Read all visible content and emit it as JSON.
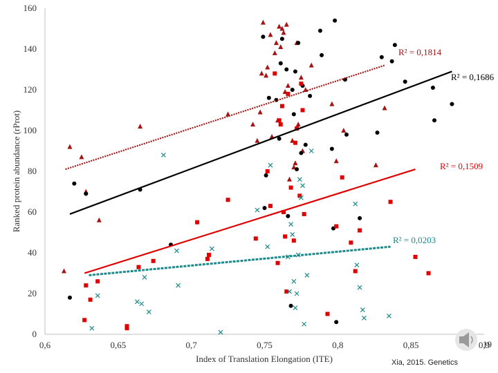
{
  "chart_data": {
    "type": "scatter",
    "xlabel": "Index of Translation Elongation (ITE)",
    "ylabel": "Ranked protein abundance (rProt)",
    "xlim": [
      0.6,
      0.9
    ],
    "ylim": [
      0,
      160
    ],
    "x_ticks": [
      "0,6",
      "0,65",
      "0,7",
      "0,75",
      "0,8",
      "0,85",
      "0,9"
    ],
    "y_ticks": [
      "0",
      "20",
      "40",
      "60",
      "80",
      "100",
      "120",
      "140",
      "160"
    ],
    "grid": false,
    "colors": {
      "triangles": "#a31515",
      "circles": "#000000",
      "squares": "#e00000",
      "crosses": "#1a8a8a"
    },
    "series": [
      {
        "marker": "triangle",
        "color": "#a31515",
        "trend": {
          "x": [
            0.614,
            0.832
          ],
          "y": [
            81,
            132
          ],
          "style": "dotted"
        },
        "r2_label": "R² = 0,1814",
        "points": [
          [
            0.613,
            31
          ],
          [
            0.617,
            92
          ],
          [
            0.625,
            87
          ],
          [
            0.628,
            70
          ],
          [
            0.637,
            56
          ],
          [
            0.665,
            102
          ],
          [
            0.725,
            108
          ],
          [
            0.742,
            103
          ],
          [
            0.745,
            95
          ],
          [
            0.747,
            109
          ],
          [
            0.748,
            128
          ],
          [
            0.749,
            153
          ],
          [
            0.751,
            127
          ],
          [
            0.752,
            131
          ],
          [
            0.754,
            147
          ],
          [
            0.755,
            97
          ],
          [
            0.757,
            138
          ],
          [
            0.758,
            143
          ],
          [
            0.759,
            105
          ],
          [
            0.76,
            151
          ],
          [
            0.761,
            141
          ],
          [
            0.762,
            150
          ],
          [
            0.763,
            148
          ],
          [
            0.764,
            119
          ],
          [
            0.765,
            152
          ],
          [
            0.766,
            122
          ],
          [
            0.767,
            76
          ],
          [
            0.769,
            95
          ],
          [
            0.77,
            82
          ],
          [
            0.771,
            84
          ],
          [
            0.772,
            143
          ],
          [
            0.773,
            103
          ],
          [
            0.775,
            126
          ],
          [
            0.776,
            90
          ],
          [
            0.778,
            120
          ],
          [
            0.782,
            132
          ],
          [
            0.796,
            113
          ],
          [
            0.799,
            85
          ],
          [
            0.804,
            100
          ],
          [
            0.826,
            83
          ],
          [
            0.832,
            111
          ]
        ]
      },
      {
        "marker": "circle",
        "color": "#000000",
        "trend": {
          "x": [
            0.617,
            0.878
          ],
          "y": [
            59,
            129
          ],
          "style": "solid"
        },
        "r2_label": "R² = 0,1686",
        "points": [
          [
            0.617,
            18
          ],
          [
            0.62,
            74
          ],
          [
            0.628,
            69
          ],
          [
            0.665,
            71
          ],
          [
            0.686,
            44
          ],
          [
            0.749,
            146
          ],
          [
            0.75,
            62
          ],
          [
            0.751,
            78
          ],
          [
            0.753,
            116
          ],
          [
            0.758,
            115
          ],
          [
            0.76,
            96
          ],
          [
            0.761,
            133
          ],
          [
            0.762,
            145
          ],
          [
            0.765,
            130
          ],
          [
            0.766,
            58
          ],
          [
            0.768,
            14
          ],
          [
            0.769,
            120
          ],
          [
            0.77,
            108
          ],
          [
            0.771,
            129
          ],
          [
            0.772,
            81
          ],
          [
            0.773,
            143
          ],
          [
            0.775,
            89
          ],
          [
            0.776,
            122
          ],
          [
            0.778,
            93
          ],
          [
            0.781,
            117
          ],
          [
            0.788,
            149
          ],
          [
            0.789,
            137
          ],
          [
            0.796,
            91
          ],
          [
            0.797,
            52
          ],
          [
            0.798,
            154
          ],
          [
            0.799,
            6
          ],
          [
            0.805,
            125
          ],
          [
            0.806,
            98
          ],
          [
            0.815,
            57
          ],
          [
            0.827,
            99
          ],
          [
            0.83,
            136
          ],
          [
            0.837,
            134
          ],
          [
            0.839,
            142
          ],
          [
            0.846,
            124
          ],
          [
            0.865,
            121
          ],
          [
            0.866,
            105
          ],
          [
            0.878,
            113
          ]
        ]
      },
      {
        "marker": "square",
        "color": "#e00000",
        "trend": {
          "x": [
            0.627,
            0.853
          ],
          "y": [
            30,
            81
          ],
          "style": "solid"
        },
        "r2_label": "R² = 0,1509",
        "points": [
          [
            0.627,
            7
          ],
          [
            0.628,
            24
          ],
          [
            0.631,
            17
          ],
          [
            0.636,
            26
          ],
          [
            0.656,
            4
          ],
          [
            0.656,
            3
          ],
          [
            0.664,
            33
          ],
          [
            0.674,
            36
          ],
          [
            0.704,
            55
          ],
          [
            0.711,
            37
          ],
          [
            0.712,
            39
          ],
          [
            0.725,
            66
          ],
          [
            0.744,
            47
          ],
          [
            0.752,
            80
          ],
          [
            0.754,
            63
          ],
          [
            0.757,
            128
          ],
          [
            0.759,
            35
          ],
          [
            0.76,
            105
          ],
          [
            0.761,
            103
          ],
          [
            0.762,
            112
          ],
          [
            0.763,
            60
          ],
          [
            0.764,
            48
          ],
          [
            0.765,
            21
          ],
          [
            0.766,
            118
          ],
          [
            0.768,
            72
          ],
          [
            0.77,
            46
          ],
          [
            0.771,
            94
          ],
          [
            0.772,
            101
          ],
          [
            0.774,
            68
          ],
          [
            0.775,
            123
          ],
          [
            0.776,
            110
          ],
          [
            0.777,
            59
          ],
          [
            0.793,
            10
          ],
          [
            0.799,
            53
          ],
          [
            0.803,
            77
          ],
          [
            0.809,
            45
          ],
          [
            0.812,
            31
          ],
          [
            0.815,
            51
          ],
          [
            0.836,
            65
          ],
          [
            0.853,
            38
          ],
          [
            0.862,
            30
          ]
        ]
      },
      {
        "marker": "cross",
        "color": "#1a8a8a",
        "trend": {
          "x": [
            0.63,
            0.836
          ],
          "y": [
            29,
            43
          ],
          "style": "dashed"
        },
        "r2_label": "R² = 0,0203",
        "points": [
          [
            0.632,
            3
          ],
          [
            0.636,
            19
          ],
          [
            0.663,
            16
          ],
          [
            0.666,
            15
          ],
          [
            0.668,
            28
          ],
          [
            0.671,
            11
          ],
          [
            0.681,
            88
          ],
          [
            0.69,
            41
          ],
          [
            0.691,
            24
          ],
          [
            0.714,
            42
          ],
          [
            0.72,
            1
          ],
          [
            0.745,
            61
          ],
          [
            0.752,
            43
          ],
          [
            0.754,
            83
          ],
          [
            0.766,
            38
          ],
          [
            0.767,
            21
          ],
          [
            0.768,
            54
          ],
          [
            0.769,
            49
          ],
          [
            0.77,
            26
          ],
          [
            0.771,
            13
          ],
          [
            0.772,
            20
          ],
          [
            0.773,
            39
          ],
          [
            0.774,
            76
          ],
          [
            0.775,
            67
          ],
          [
            0.776,
            73
          ],
          [
            0.777,
            5
          ],
          [
            0.779,
            29
          ],
          [
            0.782,
            90
          ],
          [
            0.812,
            64
          ],
          [
            0.813,
            34
          ],
          [
            0.815,
            23
          ],
          [
            0.817,
            12
          ],
          [
            0.818,
            8
          ],
          [
            0.835,
            9
          ]
        ]
      }
    ]
  },
  "citation": "Xia, 2015. Genetics",
  "corner_label": "19"
}
